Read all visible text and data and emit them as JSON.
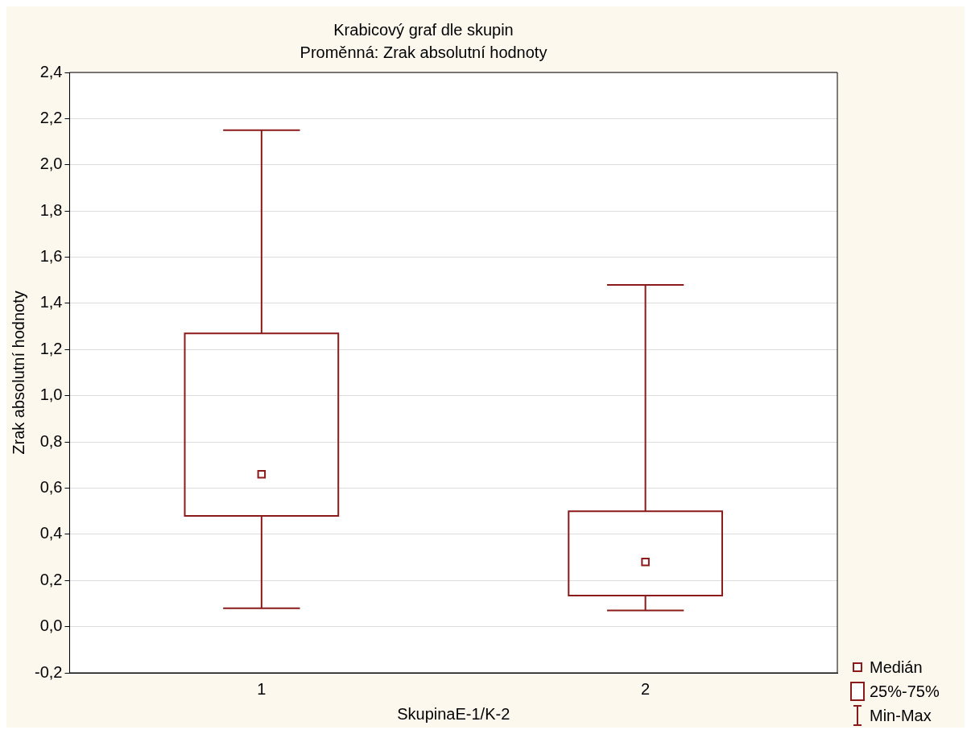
{
  "chart_data": {
    "type": "box",
    "title": "Krabicový graf dle skupin",
    "subtitle": "Proměnná: Zrak absolutní hodnoty",
    "xlabel": "SkupinaE-1/K-2",
    "ylabel": "Zrak absolutní hodnoty",
    "categories": [
      "1",
      "2"
    ],
    "boxes": [
      {
        "low": 0.08,
        "q1": 0.48,
        "median": 0.66,
        "q3": 1.27,
        "high": 2.15
      },
      {
        "low": 0.07,
        "q1": 0.135,
        "median": 0.28,
        "q3": 0.5,
        "high": 1.48
      }
    ],
    "color": "#8b1a1a",
    "ylim": [
      -0.2,
      2.4
    ],
    "yticks": [
      {
        "value": -0.2,
        "label": "-0,2"
      },
      {
        "value": 0,
        "label": "0,0"
      },
      {
        "value": 0.2,
        "label": "0,2"
      },
      {
        "value": 0.4,
        "label": "0,4"
      },
      {
        "value": 0.6,
        "label": "0,6"
      },
      {
        "value": 0.8,
        "label": "0,8"
      },
      {
        "value": 1,
        "label": "1,0"
      },
      {
        "value": 1.2,
        "label": "1,2"
      },
      {
        "value": 1.4,
        "label": "1,4"
      },
      {
        "value": 1.6,
        "label": "1,6"
      },
      {
        "value": 1.8,
        "label": "1,8"
      },
      {
        "value": 2,
        "label": "2,0"
      },
      {
        "value": 2.2,
        "label": "2,2"
      },
      {
        "value": 2.4,
        "label": "2,4"
      }
    ],
    "grid": "y",
    "marker": "square",
    "annotations": [
      "Medián",
      "25%-75%",
      "Min-Max"
    ]
  }
}
